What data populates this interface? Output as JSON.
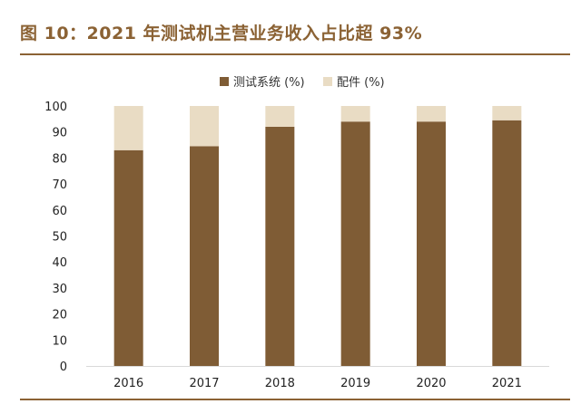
{
  "figure_title": "图 10：2021 年测试机主营业务收入占比超 93%",
  "colors": {
    "accent": "#8b6234",
    "series_test": "#7f5c35",
    "series_parts": "#e9dcc4"
  },
  "chart_data": {
    "type": "bar",
    "stacked": true,
    "categories": [
      "2016",
      "2017",
      "2018",
      "2019",
      "2020",
      "2021"
    ],
    "series": [
      {
        "name": "测试系统 (%)",
        "values": [
          83,
          84.5,
          92,
          94,
          94,
          94.5
        ]
      },
      {
        "name": "配件 (%)",
        "values": [
          17,
          15.5,
          8,
          6,
          6,
          5.5
        ]
      }
    ],
    "ylim": [
      0,
      100
    ],
    "yticks": [
      "0",
      "10",
      "20",
      "30",
      "40",
      "50",
      "60",
      "70",
      "80",
      "90",
      "100"
    ],
    "grid": false,
    "legend_position": "top-center",
    "xlabel": "",
    "ylabel": ""
  }
}
